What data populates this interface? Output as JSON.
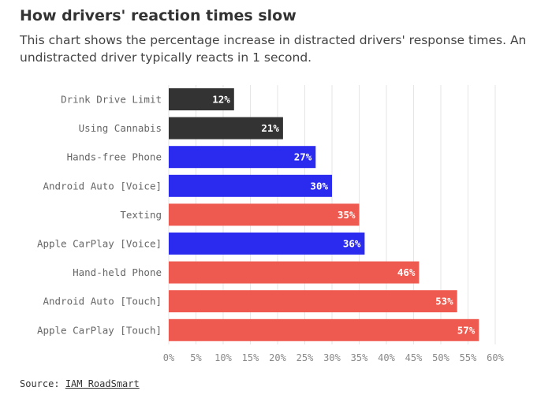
{
  "chart_data": {
    "type": "bar",
    "orientation": "horizontal",
    "title": "How drivers' reaction times slow",
    "subtitle": "This chart shows the percentage increase in distracted drivers' response times. An undistracted driver typically reacts in 1 second.",
    "categories": [
      "Drink Drive Limit",
      "Using Cannabis",
      "Hands-free Phone",
      "Android Auto [Voice]",
      "Texting",
      "Apple CarPlay [Voice]",
      "Hand-held Phone",
      "Android Auto [Touch]",
      "Apple CarPlay [Touch]"
    ],
    "values": [
      12,
      21,
      27,
      30,
      35,
      36,
      46,
      53,
      57
    ],
    "data_labels": [
      "12%",
      "21%",
      "27%",
      "30%",
      "35%",
      "36%",
      "46%",
      "53%",
      "57%"
    ],
    "bar_colors": [
      "#333333",
      "#333333",
      "#2b2bf0",
      "#2b2bf0",
      "#ee5a4f",
      "#2b2bf0",
      "#ee5a4f",
      "#ee5a4f",
      "#ee5a4f"
    ],
    "xlim": [
      0,
      60
    ],
    "xticks": [
      0,
      5,
      10,
      15,
      20,
      25,
      30,
      35,
      40,
      45,
      50,
      55,
      60
    ],
    "xtick_labels": [
      "0%",
      "5%",
      "10%",
      "15%",
      "20%",
      "25%",
      "30%",
      "35%",
      "40%",
      "45%",
      "50%",
      "55%",
      "60%"
    ],
    "grid": true,
    "xlabel": "",
    "ylabel": ""
  },
  "source": {
    "label": "Source:",
    "link_text": "IAM RoadSmart"
  }
}
